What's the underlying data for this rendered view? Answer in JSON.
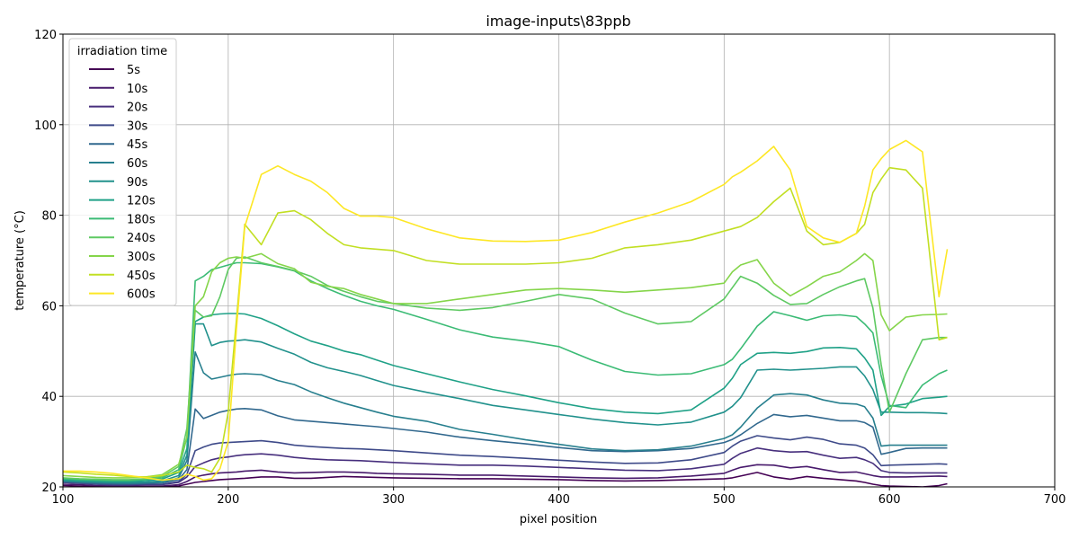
{
  "chart_data": {
    "type": "line",
    "title": "image-inputs\\83ppb",
    "xlabel": "pixel position",
    "ylabel": "temperature (°C)",
    "xlim": [
      100,
      700
    ],
    "ylim": [
      20,
      120
    ],
    "xticks": [
      100,
      200,
      300,
      400,
      500,
      600,
      700
    ],
    "yticks": [
      20,
      40,
      60,
      80,
      100,
      120
    ],
    "grid": true,
    "legend": {
      "title": "irradiation time",
      "placement": "top-left"
    },
    "x": [
      100,
      110,
      120,
      130,
      140,
      150,
      160,
      170,
      175,
      180,
      185,
      190,
      195,
      200,
      205,
      210,
      220,
      230,
      240,
      250,
      260,
      270,
      280,
      290,
      300,
      320,
      340,
      360,
      380,
      400,
      420,
      440,
      460,
      480,
      500,
      505,
      510,
      520,
      530,
      540,
      550,
      560,
      570,
      580,
      585,
      590,
      595,
      600,
      610,
      620,
      630,
      635
    ],
    "series": [
      {
        "name": "5s",
        "color": "#440154",
        "values": [
          20.3,
          20.2,
          20.1,
          20.0,
          20.0,
          20.0,
          20.0,
          20.2,
          20.6,
          21.0,
          21.2,
          21.4,
          21.6,
          21.7,
          21.8,
          21.9,
          22.2,
          22.2,
          21.9,
          21.9,
          22.1,
          22.3,
          22.2,
          22.1,
          22.0,
          21.9,
          21.8,
          21.8,
          21.7,
          21.6,
          21.4,
          21.3,
          21.4,
          21.6,
          21.8,
          22.0,
          22.4,
          23.2,
          22.2,
          21.7,
          22.3,
          21.9,
          21.6,
          21.3,
          21.0,
          20.6,
          20.3,
          20.2,
          20.1,
          20.0,
          20.3,
          20.7
        ]
      },
      {
        "name": "10s",
        "color": "#481a6c",
        "values": [
          20.6,
          20.5,
          20.3,
          20.2,
          20.2,
          20.2,
          20.2,
          20.5,
          21.2,
          22.2,
          22.6,
          22.9,
          23.1,
          23.2,
          23.3,
          23.5,
          23.7,
          23.3,
          23.1,
          23.2,
          23.3,
          23.3,
          23.2,
          23.0,
          22.9,
          22.8,
          22.6,
          22.6,
          22.4,
          22.2,
          22.0,
          21.9,
          22.0,
          22.4,
          23.0,
          23.7,
          24.3,
          24.9,
          24.8,
          24.2,
          24.5,
          23.8,
          23.2,
          23.3,
          22.9,
          22.5,
          22.2,
          22.2,
          22.2,
          22.3,
          22.4,
          22.3
        ]
      },
      {
        "name": "20s",
        "color": "#472f7d",
        "values": [
          21.0,
          20.8,
          20.6,
          20.4,
          20.4,
          20.5,
          20.5,
          21.0,
          22.2,
          24.5,
          25.3,
          26.0,
          26.4,
          26.6,
          26.9,
          27.1,
          27.3,
          27.0,
          26.5,
          26.2,
          26.0,
          25.9,
          25.8,
          25.6,
          25.4,
          25.1,
          24.8,
          24.8,
          24.6,
          24.3,
          24.0,
          23.7,
          23.6,
          24.0,
          25.0,
          26.3,
          27.4,
          28.6,
          28.0,
          27.7,
          27.8,
          27.0,
          26.3,
          26.5,
          26.0,
          25.2,
          23.6,
          23.2,
          23.1,
          23.1,
          23.1,
          23.1
        ]
      },
      {
        "name": "30s",
        "color": "#3e4a89",
        "values": [
          21.0,
          20.8,
          20.6,
          20.5,
          20.5,
          20.6,
          20.6,
          21.2,
          22.8,
          28.0,
          28.8,
          29.4,
          29.7,
          29.8,
          29.9,
          30.0,
          30.2,
          29.8,
          29.2,
          28.9,
          28.7,
          28.5,
          28.4,
          28.2,
          28.0,
          27.5,
          27.0,
          26.7,
          26.3,
          25.9,
          25.5,
          25.2,
          25.3,
          26.0,
          27.6,
          29.0,
          30.1,
          31.3,
          30.8,
          30.4,
          31.0,
          30.5,
          29.5,
          29.2,
          28.6,
          27.1,
          24.7,
          24.8,
          24.9,
          25.0,
          25.1,
          25.0
        ]
      },
      {
        "name": "45s",
        "color": "#31688e",
        "values": [
          21.2,
          21.0,
          20.8,
          20.7,
          20.7,
          20.8,
          20.9,
          21.6,
          23.8,
          37.2,
          35.1,
          35.8,
          36.5,
          36.9,
          37.2,
          37.3,
          37.0,
          35.7,
          34.8,
          34.5,
          34.2,
          33.9,
          33.6,
          33.3,
          32.9,
          32.1,
          31.0,
          30.2,
          29.5,
          28.7,
          28.0,
          27.8,
          28.0,
          28.5,
          29.8,
          30.5,
          31.5,
          34.0,
          36.0,
          35.5,
          35.8,
          35.2,
          34.6,
          34.6,
          34.2,
          33.2,
          27.2,
          27.6,
          28.5,
          28.6,
          28.6,
          28.6
        ]
      },
      {
        "name": "60s",
        "color": "#277f8e",
        "values": [
          21.3,
          21.1,
          21.0,
          20.9,
          20.8,
          20.9,
          21.0,
          22.0,
          25.8,
          49.8,
          45.2,
          43.8,
          44.2,
          44.6,
          44.9,
          45.0,
          44.8,
          43.5,
          42.6,
          41.0,
          39.7,
          38.5,
          37.5,
          36.5,
          35.6,
          34.5,
          32.7,
          31.6,
          30.4,
          29.4,
          28.4,
          28.0,
          28.2,
          29.0,
          30.7,
          31.5,
          33.2,
          37.4,
          40.3,
          40.6,
          40.3,
          39.2,
          38.5,
          38.3,
          37.7,
          35.2,
          29.0,
          29.2,
          29.2,
          29.2,
          29.2,
          29.2
        ]
      },
      {
        "name": "90s",
        "color": "#21918c",
        "values": [
          21.4,
          21.2,
          21.1,
          21.0,
          21.0,
          21.1,
          21.3,
          22.5,
          27.0,
          56.0,
          56.0,
          51.2,
          51.9,
          52.2,
          52.3,
          52.5,
          52.0,
          50.6,
          49.3,
          47.5,
          46.3,
          45.5,
          44.6,
          43.5,
          42.4,
          40.9,
          39.5,
          38.0,
          37.0,
          36.0,
          35.0,
          34.2,
          33.7,
          34.3,
          36.5,
          37.8,
          39.7,
          45.8,
          46.0,
          45.8,
          46.0,
          46.2,
          46.5,
          46.5,
          44.5,
          41.5,
          36.5,
          36.5,
          36.4,
          36.4,
          36.3,
          36.2
        ]
      },
      {
        "name": "120s",
        "color": "#1fa187",
        "values": [
          21.6,
          21.4,
          21.3,
          21.2,
          21.2,
          21.4,
          21.7,
          23.2,
          28.5,
          56.5,
          57.5,
          58.0,
          58.2,
          58.3,
          58.3,
          58.2,
          57.2,
          55.6,
          53.8,
          52.2,
          51.2,
          50.0,
          49.2,
          48.0,
          46.8,
          45.0,
          43.2,
          41.5,
          40.1,
          38.6,
          37.3,
          36.5,
          36.2,
          37.0,
          41.8,
          44.0,
          47.0,
          49.5,
          49.7,
          49.5,
          49.9,
          50.7,
          50.8,
          50.5,
          48.5,
          45.8,
          35.8,
          37.8,
          38.3,
          39.5,
          39.8,
          40.0
        ]
      },
      {
        "name": "180s",
        "color": "#3bbb75",
        "values": [
          21.8,
          21.6,
          21.5,
          21.4,
          21.4,
          21.6,
          22.0,
          23.8,
          31.0,
          65.5,
          66.5,
          68.0,
          68.5,
          69.0,
          69.5,
          69.5,
          69.3,
          68.6,
          67.7,
          65.5,
          63.8,
          62.3,
          61.0,
          60.0,
          59.2,
          57.0,
          54.7,
          53.1,
          52.2,
          51.0,
          48.0,
          45.5,
          44.7,
          45.0,
          47.0,
          48.2,
          50.5,
          55.5,
          58.7,
          57.8,
          56.8,
          57.8,
          58.0,
          57.6,
          56.0,
          54.0,
          44.5,
          38.0,
          37.5,
          42.5,
          45.0,
          45.8
        ]
      },
      {
        "name": "240s",
        "color": "#5ec962",
        "values": [
          22.0,
          21.8,
          21.7,
          21.6,
          21.6,
          21.8,
          22.3,
          24.5,
          33.0,
          59.0,
          57.5,
          57.8,
          62.0,
          68.0,
          70.5,
          70.8,
          69.5,
          68.7,
          67.8,
          66.5,
          64.5,
          63.2,
          62.0,
          61.0,
          60.5,
          59.5,
          59.0,
          59.6,
          61.0,
          62.5,
          61.5,
          58.4,
          56.0,
          56.5,
          61.5,
          64.0,
          66.5,
          65.0,
          62.3,
          60.3,
          60.5,
          62.5,
          64.2,
          65.5,
          66.0,
          59.5,
          47.0,
          36.5,
          45.0,
          52.5,
          53.0,
          53.0
        ]
      },
      {
        "name": "300s",
        "color": "#85d54a",
        "values": [
          22.5,
          22.3,
          22.1,
          22.0,
          22.0,
          22.2,
          22.7,
          25.0,
          31.0,
          60.0,
          62.0,
          67.5,
          69.5,
          70.5,
          70.8,
          70.5,
          71.5,
          69.3,
          68.2,
          65.2,
          64.3,
          63.8,
          62.5,
          61.5,
          60.5,
          60.5,
          61.5,
          62.5,
          63.5,
          63.8,
          63.5,
          63.0,
          63.5,
          64.0,
          65.0,
          67.5,
          69.0,
          70.2,
          65.0,
          62.2,
          64.2,
          66.5,
          67.5,
          70.0,
          71.5,
          70.0,
          58.0,
          54.5,
          57.5,
          58.0,
          58.1,
          58.2
        ]
      },
      {
        "name": "450s",
        "color": "#c2df23",
        "values": [
          23.3,
          23.1,
          22.8,
          22.6,
          22.3,
          22.2,
          22.5,
          23.3,
          24.8,
          24.3,
          24.0,
          23.3,
          26.3,
          36.5,
          57.0,
          78.0,
          73.5,
          80.5,
          81.0,
          79.0,
          76.0,
          73.5,
          72.8,
          72.5,
          72.2,
          70.0,
          69.2,
          69.2,
          69.2,
          69.5,
          70.5,
          72.8,
          73.5,
          74.5,
          76.5,
          77.0,
          77.5,
          79.5,
          83.0,
          86.0,
          76.5,
          73.5,
          74.0,
          76.0,
          78.0,
          85.0,
          88.0,
          90.5,
          90.0,
          86.0,
          52.5,
          53.0
        ]
      },
      {
        "name": "600s",
        "color": "#fde725",
        "values": [
          23.5,
          23.5,
          23.3,
          23.0,
          22.5,
          22.0,
          21.5,
          21.8,
          22.8,
          22.3,
          21.5,
          21.8,
          24.0,
          30.0,
          55.0,
          77.5,
          89.0,
          90.9,
          89.0,
          87.5,
          85.0,
          81.5,
          79.8,
          79.8,
          79.5,
          77.0,
          75.0,
          74.3,
          74.2,
          74.5,
          76.2,
          78.5,
          80.5,
          83.0,
          86.8,
          88.5,
          89.5,
          92.0,
          95.2,
          90.0,
          77.5,
          75.0,
          74.0,
          76.0,
          82.0,
          90.0,
          92.5,
          94.5,
          96.5,
          94.0,
          62.0,
          72.5
        ]
      }
    ]
  }
}
